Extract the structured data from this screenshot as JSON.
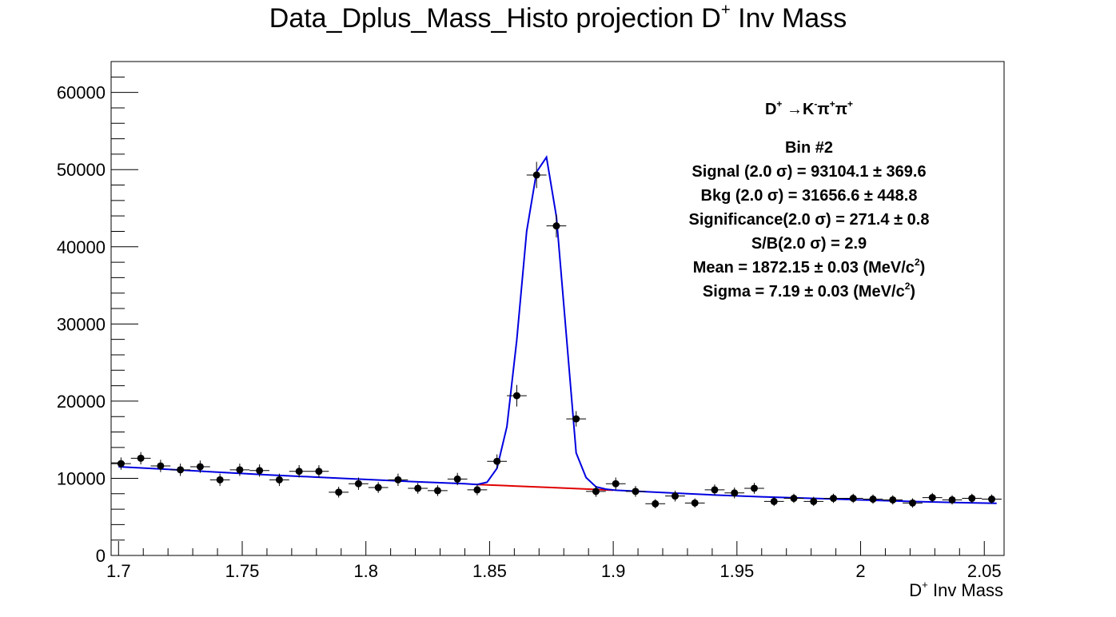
{
  "chart_data": {
    "type": "scatter",
    "title": "Data_Dplus_Mass_Histo projection  D",
    "title_sup": "+",
    "title_suffix": " Inv Mass",
    "xlabel": "D",
    "xlabel_sup": "+",
    "xlabel_suffix": " Inv Mass",
    "ylabel": "",
    "xlim": [
      1.697,
      2.058
    ],
    "ylim": [
      0,
      64000
    ],
    "x_ticks": [
      1.7,
      1.75,
      1.8,
      1.85,
      1.9,
      1.95,
      2.0,
      2.05
    ],
    "x_tick_labels": [
      "1.7",
      "1.75",
      "1.8",
      "1.85",
      "1.9",
      "1.95",
      "2",
      "2.05"
    ],
    "y_ticks": [
      0,
      10000,
      20000,
      30000,
      40000,
      50000,
      60000
    ],
    "y_tick_labels": [
      "0",
      "10000",
      "20000",
      "30000",
      "40000",
      "50000",
      "60000"
    ],
    "bin_half_width": 0.004,
    "grid": false,
    "series": [
      {
        "kind": "points-with-errors",
        "color": "#000000",
        "x": [
          1.701,
          1.709,
          1.717,
          1.725,
          1.733,
          1.741,
          1.749,
          1.757,
          1.765,
          1.773,
          1.781,
          1.789,
          1.797,
          1.805,
          1.813,
          1.821,
          1.829,
          1.837,
          1.845,
          1.853,
          1.861,
          1.869,
          1.877,
          1.885,
          1.893,
          1.901,
          1.909,
          1.917,
          1.925,
          1.933,
          1.941,
          1.949,
          1.957,
          1.965,
          1.973,
          1.981,
          1.989,
          1.997,
          2.005,
          2.013,
          2.021,
          2.029,
          2.037,
          2.045,
          2.053
        ],
        "y": [
          11900,
          12600,
          11600,
          11100,
          11500,
          9800,
          11100,
          11000,
          9800,
          10900,
          10900,
          8200,
          9300,
          8800,
          9800,
          8700,
          8400,
          9900,
          8500,
          12200,
          20700,
          49300,
          42700,
          17700,
          8300,
          9300,
          8300,
          6700,
          7700,
          6800,
          8500,
          8100,
          8700,
          7000,
          7400,
          7000,
          7400,
          7400,
          7300,
          7200,
          6800,
          7500,
          7200,
          7400,
          7300
        ],
        "yerr": [
          800,
          800,
          800,
          800,
          800,
          800,
          800,
          800,
          800,
          800,
          800,
          700,
          800,
          700,
          800,
          700,
          700,
          800,
          700,
          900,
          1400,
          1700,
          1500,
          1000,
          700,
          800,
          700,
          600,
          700,
          600,
          700,
          700,
          700,
          600,
          600,
          600,
          600,
          600,
          600,
          600,
          600,
          600,
          600,
          600,
          600
        ]
      },
      {
        "kind": "line",
        "role": "background-fit",
        "color": "#e00000",
        "x": [
          1.845,
          1.86,
          1.875,
          1.89,
          1.9
        ],
        "y": [
          9200,
          9000,
          8800,
          8600,
          8450
        ]
      },
      {
        "kind": "line",
        "role": "total-fit",
        "color": "#0000e0",
        "x": [
          1.7,
          1.72,
          1.74,
          1.76,
          1.78,
          1.8,
          1.82,
          1.84,
          1.845,
          1.849,
          1.853,
          1.857,
          1.861,
          1.865,
          1.869,
          1.873,
          1.877,
          1.881,
          1.885,
          1.889,
          1.893,
          1.897,
          1.901,
          1.92,
          1.94,
          1.96,
          1.98,
          2.0,
          2.02,
          2.04,
          2.055
        ],
        "y": [
          11500,
          11150,
          10800,
          10450,
          10150,
          9850,
          9550,
          9300,
          9200,
          9500,
          11300,
          16700,
          27900,
          42000,
          49700,
          51600,
          43900,
          28700,
          13300,
          10100,
          8900,
          8600,
          8450,
          8150,
          7850,
          7600,
          7400,
          7200,
          7000,
          6850,
          6750
        ]
      }
    ],
    "legend_placement": "top-right"
  },
  "legend": {
    "decay_head": "D",
    "decay_head_sup": "+",
    "decay_arrow": " →K",
    "decay_k_sup": "-",
    "decay_pi1": "π",
    "decay_pi1_sup": "+",
    "decay_pi2": "π",
    "decay_pi2_sup": "+",
    "bin": "Bin #2",
    "signal": "Signal (2.0  σ) =  93104.1 ± 369.6",
    "bkg": "Bkg (2.0  σ) =  31656.6 ± 448.8",
    "significance": "Significance(2.0  σ) =  271.4  ± 0.8",
    "sb": "S/B(2.0  σ) =  2.9",
    "mean": "Mean = 1872.15  ± 0.03 (MeV/c",
    "mean_sup": "2",
    "mean_close": ")",
    "sigma": "Sigma = 7.19  ± 0.03 (MeV/c",
    "sigma_sup": "2",
    "sigma_close": ")"
  }
}
